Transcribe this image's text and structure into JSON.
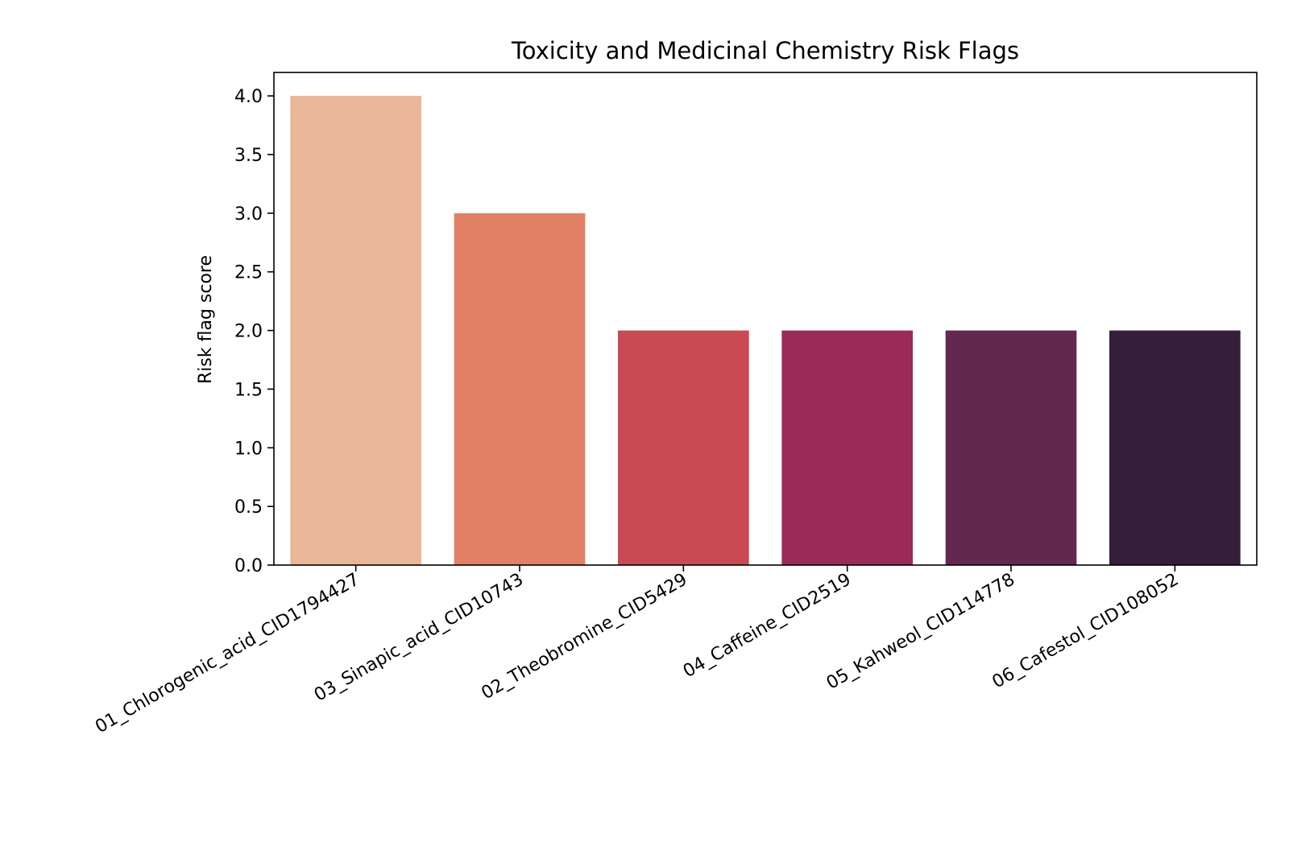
{
  "chart_data": {
    "type": "bar",
    "title": "Toxicity and Medicinal Chemistry Risk Flags",
    "xlabel": "",
    "ylabel": "Risk flag score",
    "categories": [
      "01_Chlorogenic_acid_CID1794427",
      "03_Sinapic_acid_CID10743",
      "02_Theobromine_CID5429",
      "04_Caffeine_CID2519",
      "05_Kahweol_CID114778",
      "06_Cafestol_CID108052"
    ],
    "values": [
      4,
      3,
      2,
      2,
      2,
      2
    ],
    "colors": [
      "#e9b699",
      "#e08166",
      "#c94a53",
      "#9a2a58",
      "#64284e",
      "#351e39"
    ],
    "ylim": [
      0,
      4.2
    ],
    "yticks": [
      0.0,
      0.5,
      1.0,
      1.5,
      2.0,
      2.5,
      3.0,
      3.5,
      4.0
    ],
    "ytick_labels": [
      "0.0",
      "0.5",
      "1.0",
      "1.5",
      "2.0",
      "2.5",
      "3.0",
      "3.5",
      "4.0"
    ],
    "grid": false,
    "legend": "none"
  }
}
